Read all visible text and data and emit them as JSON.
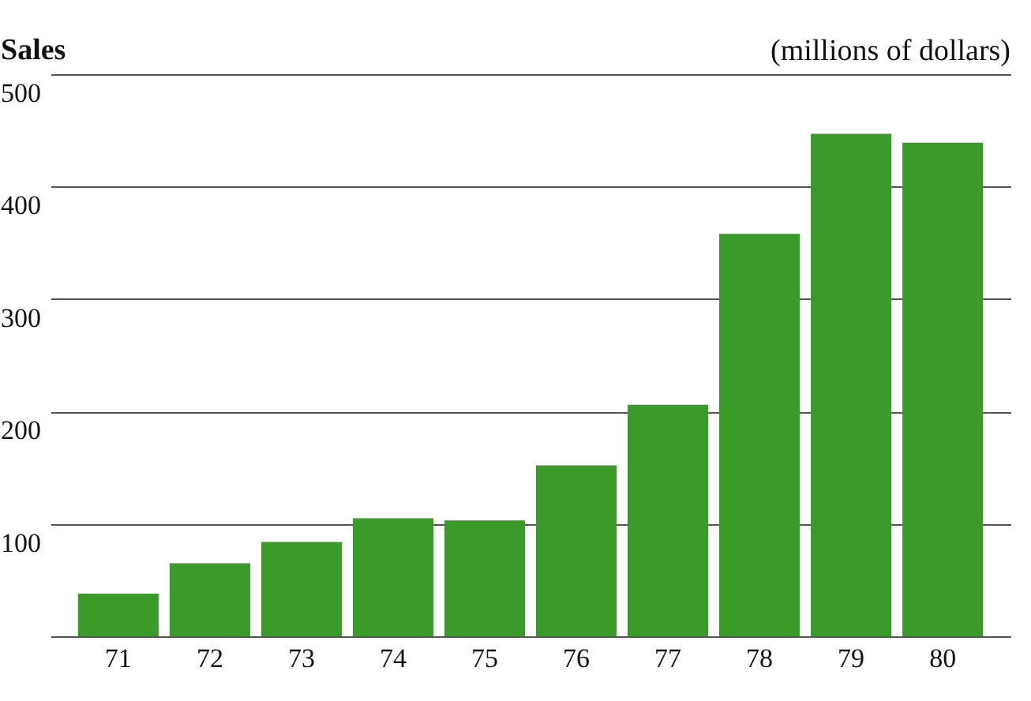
{
  "chart_data": {
    "type": "bar",
    "title": "(millions of dollars)",
    "ylabel": "Sales",
    "categories": [
      "71",
      "72",
      "73",
      "74",
      "75",
      "76",
      "77",
      "78",
      "79",
      "80"
    ],
    "values": [
      38,
      65,
      84,
      105,
      103,
      152,
      206,
      358,
      447,
      439
    ],
    "color": "#3a9a2a",
    "ylim": [
      0,
      500
    ],
    "yticks": [
      {
        "value": 0,
        "label": null
      },
      100,
      200,
      300,
      400,
      500
    ],
    "grid": "y"
  }
}
